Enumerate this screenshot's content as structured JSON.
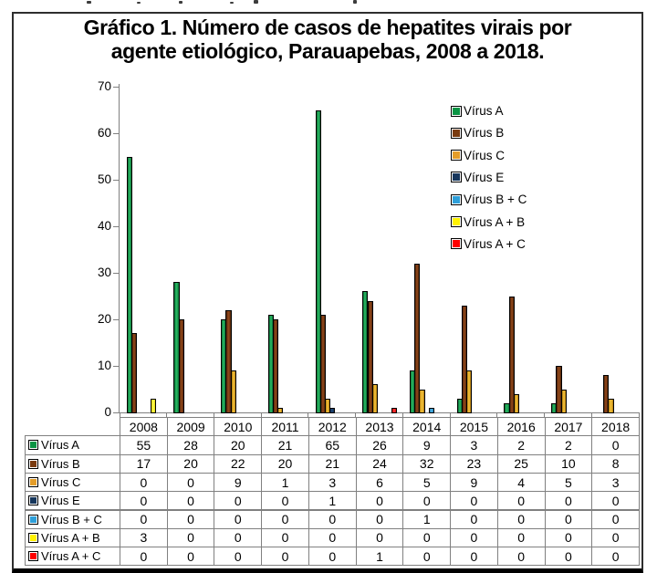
{
  "figure": {
    "title_line1": "Gráfico 1. Número de casos de hepatites virais por",
    "title_line2": "agente etiológico, Parauapebas, 2008 a 2018."
  },
  "chart_data": {
    "type": "bar",
    "title": "Gráfico 1. Número de casos de hepatites virais por agente etiológico, Parauapebas, 2008 a 2018.",
    "xlabel": "",
    "ylabel": "",
    "ylim": [
      0,
      70
    ],
    "yticks": [
      0,
      10,
      20,
      30,
      40,
      50,
      60,
      70
    ],
    "grid": false,
    "legend_position": "upper right",
    "data_table_shown": true,
    "categories": [
      "2008",
      "2009",
      "2010",
      "2011",
      "2012",
      "2013",
      "2014",
      "2015",
      "2016",
      "2017",
      "2018"
    ],
    "series": [
      {
        "name": "Vírus A",
        "legend_color": "#0B9444",
        "bar_dark": "#0A6F37",
        "bar_light": "#2CBE66",
        "values": [
          55,
          28,
          20,
          21,
          65,
          26,
          9,
          3,
          2,
          2,
          0
        ]
      },
      {
        "name": "Vírus B",
        "legend_color": "#7A3B10",
        "bar_dark": "#52280B",
        "bar_light": "#96491B",
        "values": [
          17,
          20,
          22,
          20,
          21,
          24,
          32,
          23,
          25,
          10,
          8
        ]
      },
      {
        "name": "Vírus C",
        "legend_color": "#E49D29",
        "bar_dark": "#B27B0E",
        "bar_light": "#FBC93D",
        "values": [
          0,
          0,
          9,
          1,
          3,
          6,
          5,
          9,
          4,
          5,
          3
        ]
      },
      {
        "name": "Vírus E",
        "legend_color": "#16365C",
        "bar_dark": "#122C4C",
        "bar_light": "#1F4A7D",
        "values": [
          0,
          0,
          0,
          0,
          1,
          0,
          0,
          0,
          0,
          0,
          0
        ]
      },
      {
        "name": "Vírus B + C",
        "legend_color": "#2E9FD9",
        "bar_dark": "#1F7FB5",
        "bar_light": "#55B7E8",
        "values": [
          0,
          0,
          0,
          0,
          0,
          0,
          1,
          0,
          0,
          0,
          0
        ]
      },
      {
        "name": "Vírus A + B",
        "legend_color": "#FFF200",
        "bar_dark": "#E2D400",
        "bar_light": "#FFFF5F",
        "values": [
          3,
          0,
          0,
          0,
          0,
          0,
          0,
          0,
          0,
          0,
          0
        ]
      },
      {
        "name": "Vírus A + C",
        "legend_color": "#FF0000",
        "bar_dark": "#D40000",
        "bar_light": "#FF4040",
        "values": [
          0,
          0,
          0,
          0,
          0,
          1,
          0,
          0,
          0,
          0,
          0
        ]
      }
    ]
  }
}
